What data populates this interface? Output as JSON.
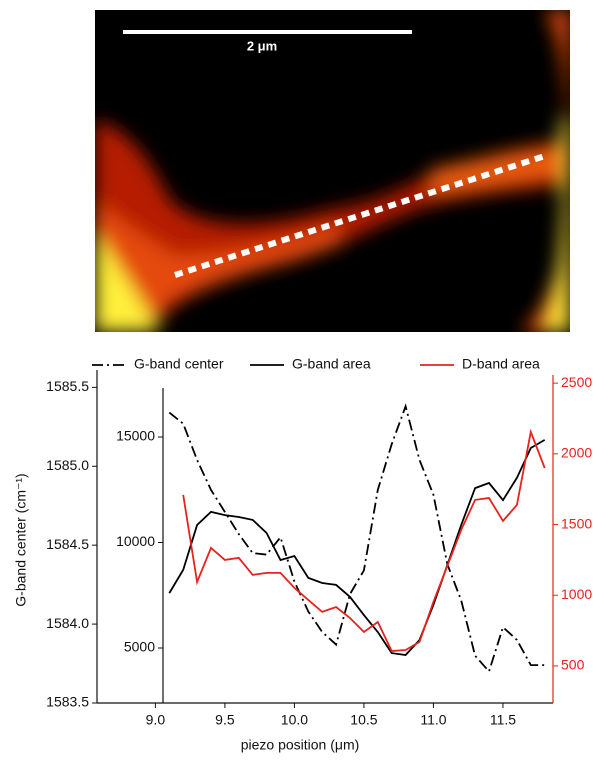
{
  "chart_data": {
    "type": "line",
    "scale_bar_label": "2 μm",
    "xlabel": "piezo position (μm)",
    "ylabel": "G-band center (cm⁻¹)",
    "x": [
      9.1,
      9.2,
      9.3,
      9.4,
      9.5,
      9.6,
      9.7,
      9.8,
      9.9,
      10.0,
      10.1,
      10.2,
      10.3,
      10.4,
      10.5,
      10.6,
      10.7,
      10.8,
      10.9,
      11.0,
      11.1,
      11.2,
      11.3,
      11.4,
      11.5,
      11.6,
      11.7,
      11.8
    ],
    "series": [
      {
        "name": "G-band center",
        "color": "#000000",
        "dash": "dashdot",
        "axis": "y",
        "values": [
          1585.34,
          1585.27,
          1585.04,
          1584.85,
          1584.71,
          1584.57,
          1584.45,
          1584.44,
          1584.55,
          1584.27,
          1584.08,
          1583.95,
          1583.87,
          1584.19,
          1584.34,
          1584.85,
          1585.14,
          1585.38,
          1585.04,
          1584.82,
          1584.38,
          1584.15,
          1583.8,
          1583.7,
          1583.98,
          1583.9,
          1583.74,
          1583.74
        ]
      },
      {
        "name": "G-band area",
        "color": "#000000",
        "dash": "solid",
        "axis": "y3",
        "values": [
          7600,
          8700,
          10830,
          11450,
          11300,
          11210,
          11070,
          10450,
          9170,
          9360,
          8320,
          8080,
          7990,
          7420,
          6560,
          5760,
          4760,
          4670,
          5380,
          7040,
          8930,
          10830,
          12580,
          12820,
          12010,
          13060,
          14480,
          14860
        ]
      },
      {
        "name": "D-band area",
        "color": "#e8221c",
        "dash": "solid",
        "axis": "y2",
        "values": [
          null,
          1710,
          1094,
          1335,
          1250,
          1264,
          1144,
          1158,
          1158,
          1052,
          967,
          882,
          917,
          839,
          740,
          811,
          606,
          613,
          670,
          953,
          1207,
          1462,
          1674,
          1688,
          1525,
          1639,
          2155,
          1900
        ]
      }
    ],
    "xlim": [
      8.58,
      11.86
    ],
    "xticks": [
      {
        "value": 9.0,
        "label": "9.0"
      },
      {
        "value": 9.5,
        "label": "9.5"
      },
      {
        "value": 10.0,
        "label": "10.0"
      },
      {
        "value": 10.5,
        "label": "10.5"
      },
      {
        "value": 11.0,
        "label": "11.0"
      },
      {
        "value": 11.5,
        "label": "11.5"
      }
    ],
    "ylim": [
      1583.5,
      1585.61
    ],
    "yticks": [
      1583.5,
      {
        "value": 1584.0,
        "label": "1584.0"
      },
      1584.5,
      {
        "value": 1585.0,
        "label": "1585.0"
      },
      1585.5
    ],
    "y3lim": [
      2393,
      18175
    ],
    "y3ticks": [
      5000,
      10000,
      15000
    ],
    "y2lim": [
      238,
      2593
    ],
    "y2ticks": [
      500,
      1000,
      1500,
      2000,
      2500
    ],
    "y2color": "#e8221c"
  }
}
